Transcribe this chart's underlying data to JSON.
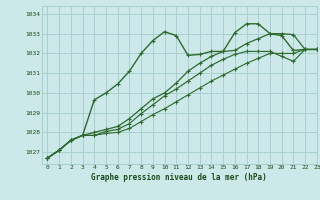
{
  "title": "Graphe pression niveau de la mer (hPa)",
  "bg_color": "#cce8e8",
  "grid_color": "#a8d0d0",
  "line_color": "#2d6a2d",
  "marker_color": "#2d6a2d",
  "xlim": [
    -0.5,
    23
  ],
  "ylim": [
    1026.4,
    1034.4
  ],
  "yticks": [
    1027,
    1028,
    1029,
    1030,
    1031,
    1032,
    1033,
    1034
  ],
  "xticks": [
    0,
    1,
    2,
    3,
    4,
    5,
    6,
    7,
    8,
    9,
    10,
    11,
    12,
    13,
    14,
    15,
    16,
    17,
    18,
    19,
    20,
    21,
    22,
    23
  ],
  "series": [
    [
      1026.7,
      1027.1,
      1027.6,
      1027.85,
      1029.65,
      1030.0,
      1030.45,
      1031.1,
      1032.0,
      1032.65,
      1033.1,
      1032.9,
      1031.9,
      1031.95,
      1032.1,
      1032.1,
      1033.05,
      1033.5,
      1033.5,
      1033.0,
      1032.9,
      1032.15,
      1032.2,
      1032.2
    ],
    [
      1026.7,
      1027.1,
      1027.6,
      1027.85,
      1028.0,
      1028.15,
      1028.3,
      1028.7,
      1029.2,
      1029.7,
      1030.0,
      1030.5,
      1031.1,
      1031.5,
      1031.85,
      1032.1,
      1032.15,
      1032.5,
      1032.75,
      1033.0,
      1033.0,
      1032.95,
      1032.2,
      1032.2
    ],
    [
      1026.7,
      1027.1,
      1027.6,
      1027.85,
      1027.85,
      1028.05,
      1028.15,
      1028.45,
      1028.95,
      1029.4,
      1029.85,
      1030.2,
      1030.6,
      1031.0,
      1031.4,
      1031.7,
      1031.95,
      1032.1,
      1032.1,
      1032.1,
      1031.85,
      1031.6,
      1032.2,
      1032.2
    ],
    [
      1026.7,
      1027.1,
      1027.6,
      1027.85,
      1027.85,
      1027.95,
      1028.0,
      1028.2,
      1028.55,
      1028.9,
      1029.2,
      1029.55,
      1029.9,
      1030.25,
      1030.6,
      1030.9,
      1031.2,
      1031.5,
      1031.75,
      1032.0,
      1032.0,
      1032.0,
      1032.2,
      1032.2
    ]
  ]
}
